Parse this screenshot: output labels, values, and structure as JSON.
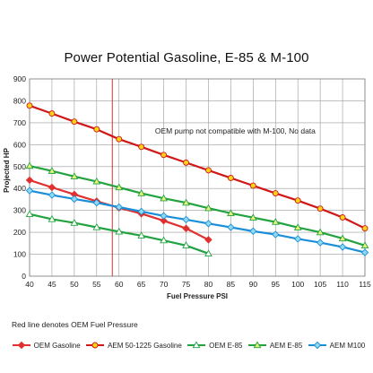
{
  "chart_data": {
    "type": "line",
    "title": "Power Potential Gasoline, E-85 & M-100",
    "xlabel": "Fuel Pressure PSI",
    "ylabel": "Projected HP",
    "xlim": [
      40,
      115
    ],
    "ylim": [
      0,
      900
    ],
    "xticks": [
      40,
      45,
      50,
      55,
      60,
      65,
      70,
      75,
      80,
      85,
      90,
      95,
      100,
      105,
      110,
      115
    ],
    "yticks": [
      0,
      100,
      200,
      300,
      400,
      500,
      600,
      700,
      800,
      900
    ],
    "grid": true,
    "legend_position": "bottom",
    "annotations": [
      {
        "text": "OEM pump not compatible with M-100, No data",
        "x": 86,
        "y": 650
      }
    ],
    "reference_line": {
      "x": 58.5,
      "color": "#c0392b"
    },
    "footnote": "Red line denotes OEM Fuel Pressure",
    "series": [
      {
        "name": "OEM Gasoline",
        "color": "#e03030",
        "marker": "diamond",
        "marker_fill": "#e03030",
        "x": [
          40,
          45,
          50,
          55,
          60,
          65,
          70,
          75,
          80
        ],
        "y": [
          438,
          405,
          373,
          342,
          312,
          285,
          253,
          218,
          166
        ]
      },
      {
        "name": "AEM 50-1225 Gasoline",
        "color": "#d01818",
        "marker": "circle",
        "marker_fill": "#ffd21a",
        "x": [
          40,
          45,
          50,
          55,
          60,
          65,
          70,
          75,
          80,
          85,
          90,
          95,
          100,
          105,
          110,
          115
        ],
        "y": [
          778,
          742,
          705,
          670,
          625,
          590,
          553,
          518,
          483,
          448,
          413,
          378,
          345,
          308,
          268,
          218
        ]
      },
      {
        "name": "OEM E-85",
        "color": "#22a340",
        "marker": "triangle",
        "marker_fill": "#ffffff",
        "x": [
          40,
          45,
          50,
          55,
          60,
          65,
          70,
          75,
          80
        ],
        "y": [
          283,
          260,
          243,
          223,
          203,
          185,
          163,
          140,
          103
        ]
      },
      {
        "name": "AEM E-85",
        "color": "#22a340",
        "marker": "triangle",
        "marker_fill": "#e8f07a",
        "x": [
          40,
          45,
          50,
          55,
          60,
          65,
          70,
          75,
          80,
          85,
          90,
          95,
          100,
          105,
          110,
          115
        ],
        "y": [
          503,
          480,
          455,
          432,
          405,
          378,
          355,
          335,
          310,
          287,
          267,
          247,
          222,
          200,
          172,
          140
        ]
      },
      {
        "name": "AEM M100",
        "color": "#1a8fd8",
        "marker": "diamond",
        "marker_fill": "#8ed8f0",
        "x": [
          40,
          45,
          50,
          55,
          60,
          65,
          70,
          75,
          80,
          85,
          90,
          95,
          100,
          105,
          110,
          115
        ],
        "y": [
          390,
          370,
          352,
          335,
          315,
          295,
          275,
          258,
          240,
          223,
          205,
          190,
          170,
          153,
          133,
          108
        ]
      }
    ]
  }
}
